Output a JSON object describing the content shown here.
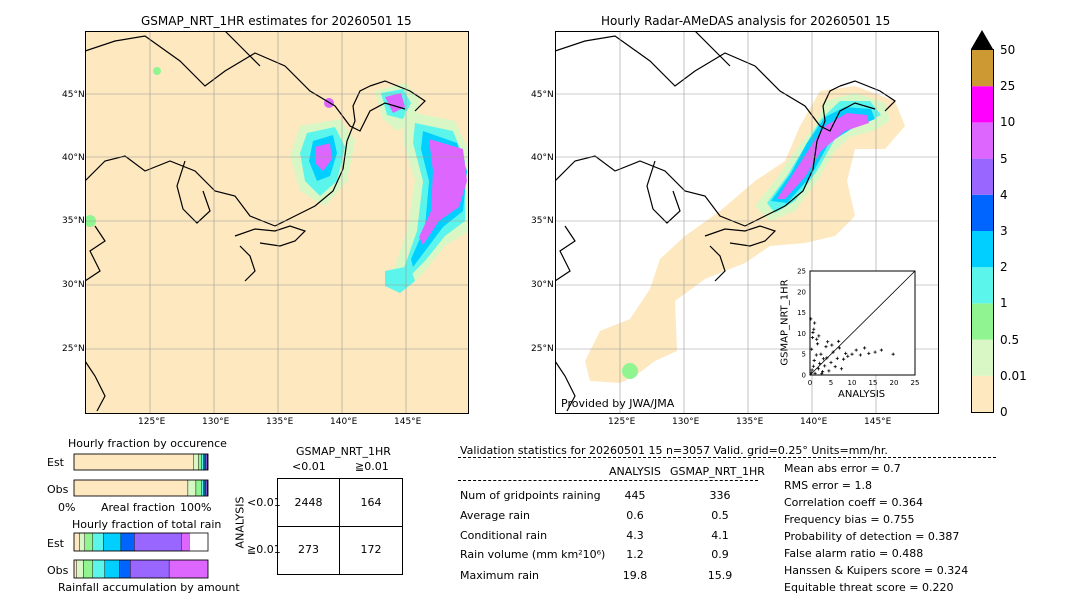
{
  "left_map": {
    "title": "GSMAP_NRT_1HR estimates for 20260501 15",
    "lat_labels": [
      "45°N",
      "40°N",
      "35°N",
      "30°N",
      "25°N"
    ],
    "lon_labels": [
      "125°E",
      "130°E",
      "135°E",
      "140°E",
      "145°E"
    ]
  },
  "right_map": {
    "title": "Hourly Radar-AMeDAS analysis for 20260501 15",
    "lat_labels": [
      "45°N",
      "40°N",
      "35°N",
      "30°N",
      "25°N"
    ],
    "lon_labels": [
      "125°E",
      "130°E",
      "135°E",
      "140°E",
      "145°E"
    ],
    "credit": "Provided by JWA/JMA"
  },
  "colorbar": {
    "labels": [
      "50",
      "25",
      "10",
      "5",
      "4",
      "3",
      "2",
      "1",
      "0.5",
      "0.01",
      "0"
    ],
    "colors": [
      "#fde8c0",
      "#d9f7c4",
      "#90f590",
      "#5cf5ec",
      "#00cfff",
      "#0064ff",
      "#9966ff",
      "#dd66ff",
      "#ff00ff",
      "#cc9933"
    ],
    "over_color": "#000000"
  },
  "inset": {
    "ylabel": "GSMAP_NRT_1HR",
    "xlabel": "ANALYSIS",
    "ticks": [
      "0",
      "5",
      "10",
      "15",
      "20",
      "25"
    ]
  },
  "occurrence": {
    "title": "Hourly fraction by occurence",
    "rows": [
      "Est",
      "Obs"
    ],
    "axis_left": "0%",
    "axis_mid": "Areal fraction",
    "axis_right": "100%"
  },
  "total_rain": {
    "title": "Hourly fraction of total rain",
    "rows": [
      "Est",
      "Obs"
    ],
    "footer": "Rainfall accumulation by amount"
  },
  "contingency": {
    "title": "GSMAP_NRT_1HR",
    "col_labels": [
      "<0.01",
      "≧0.01"
    ],
    "row_axis": "ANALYSIS",
    "row_labels": [
      "<0.01",
      "≧0.01"
    ],
    "cells": [
      [
        "2448",
        "164"
      ],
      [
        "273",
        "172"
      ]
    ]
  },
  "validation": {
    "header": "Validation statistics for 20260501 15  n=3057 Valid. grid=0.25° Units=mm/hr.",
    "col_analysis": "ANALYSIS",
    "col_gsmap": "GSMAP_NRT_1HR",
    "rows": [
      {
        "label": "Num of gridpoints raining",
        "a": "445",
        "g": "336"
      },
      {
        "label": "Average rain",
        "a": "0.6",
        "g": "0.5"
      },
      {
        "label": "Conditional rain",
        "a": "4.3",
        "g": "4.1"
      },
      {
        "label": "Rain volume (mm km²10⁶)",
        "a": "1.2",
        "g": "0.9"
      },
      {
        "label": "Maximum rain",
        "a": "19.8",
        "g": "15.9"
      }
    ],
    "scores": [
      "Mean abs error =    0.7",
      "RMS error =    1.8",
      "Correlation coeff =  0.364",
      "Frequency bias =  0.755",
      "Probability of detection =  0.387",
      "False alarm ratio =  0.488",
      "Hanssen & Kuipers score =  0.324",
      "Equitable threat score =  0.220"
    ]
  },
  "chart_data": [
    {
      "type": "scatter",
      "title": "",
      "xlabel": "ANALYSIS",
      "ylabel": "GSMAP_NRT_1HR",
      "xlim": [
        0,
        25
      ],
      "ylim": [
        0,
        25
      ],
      "points": [
        [
          0.3,
          0.5
        ],
        [
          0.5,
          1.2
        ],
        [
          0.8,
          2.1
        ],
        [
          1.0,
          3.5
        ],
        [
          1.2,
          0.4
        ],
        [
          1.5,
          4.8
        ],
        [
          0.4,
          6.2
        ],
        [
          2.0,
          1.5
        ],
        [
          2.3,
          2.8
        ],
        [
          2.6,
          5.0
        ],
        [
          3.0,
          0.8
        ],
        [
          3.2,
          3.9
        ],
        [
          3.5,
          2.2
        ],
        [
          1.8,
          7.5
        ],
        [
          0.6,
          9.0
        ],
        [
          0.9,
          11.0
        ],
        [
          1.1,
          12.5
        ],
        [
          4.0,
          4.1
        ],
        [
          4.5,
          1.0
        ],
        [
          5.0,
          3.0
        ],
        [
          5.5,
          5.5
        ],
        [
          6.0,
          2.0
        ],
        [
          6.5,
          4.0
        ],
        [
          7.0,
          6.5
        ],
        [
          7.5,
          1.5
        ],
        [
          8.0,
          3.8
        ],
        [
          8.5,
          5.2
        ],
        [
          9.0,
          4.5
        ],
        [
          10.0,
          5.0
        ],
        [
          11.0,
          6.0
        ],
        [
          12.0,
          4.8
        ],
        [
          13.0,
          6.5
        ],
        [
          14.0,
          5.2
        ],
        [
          15.5,
          5.5
        ],
        [
          17.0,
          6.0
        ],
        [
          19.8,
          5.0
        ],
        [
          2.8,
          0.3
        ],
        [
          3.8,
          6.8
        ],
        [
          4.2,
          8.0
        ],
        [
          0.2,
          13.5
        ],
        [
          0.7,
          10.2
        ],
        [
          1.6,
          8.6
        ],
        [
          2.1,
          9.4
        ],
        [
          5.2,
          7.2
        ],
        [
          6.8,
          8.1
        ]
      ]
    },
    {
      "type": "bar",
      "title": "Hourly fraction by occurence",
      "xlabel": "Areal fraction",
      "categories": [
        "Est",
        "Obs"
      ],
      "series": [
        {
          "values": [
            0.89,
            0.85
          ]
        },
        {
          "values": [
            0.04,
            0.06
          ]
        },
        {
          "values": [
            0.02,
            0.04
          ]
        },
        {
          "values": [
            0.015,
            0.015
          ]
        },
        {
          "values": [
            0.01,
            0.01
          ]
        },
        {
          "values": [
            0.01,
            0.01
          ]
        },
        {
          "values": [
            0.01,
            0.01
          ]
        },
        {
          "values": [
            0.005,
            0.005
          ]
        }
      ]
    },
    {
      "type": "bar",
      "title": "Hourly fraction of total rain",
      "xlabel": "Rainfall accumulation by amount",
      "categories": [
        "Est",
        "Obs"
      ],
      "series": [
        {
          "values": [
            0.04,
            0.02
          ]
        },
        {
          "values": [
            0.04,
            0.05
          ]
        },
        {
          "values": [
            0.06,
            0.07
          ]
        },
        {
          "values": [
            0.08,
            0.09
          ]
        },
        {
          "values": [
            0.13,
            0.11
          ]
        },
        {
          "values": [
            0.1,
            0.08
          ]
        },
        {
          "values": [
            0.35,
            0.29
          ]
        },
        {
          "values": [
            0.06,
            0.29
          ]
        }
      ]
    }
  ]
}
